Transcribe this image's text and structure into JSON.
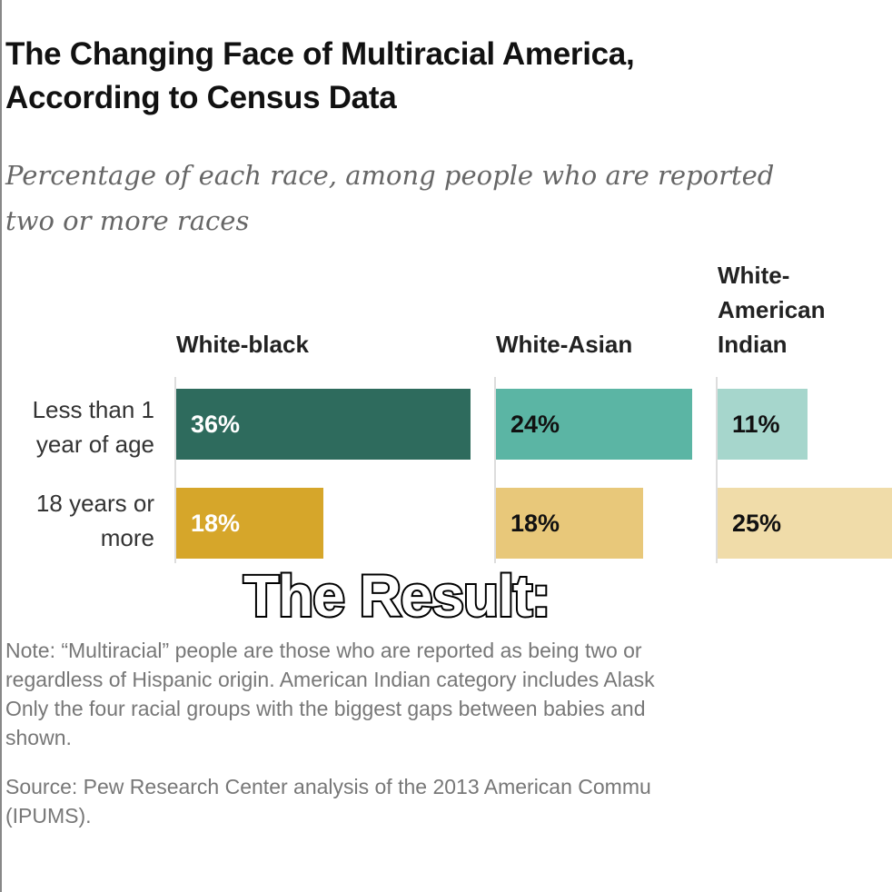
{
  "chart_data": {
    "type": "bar",
    "orientation": "horizontal",
    "title": "The Changing Face of Multiracial America, According to Census Data",
    "subtitle": "Percentage of each race, among people who are reported as two or more races",
    "title_lines": [
      "The Changing Face of Multiracial America,",
      "According to Census Data"
    ],
    "subtitle_lines": [
      "Percentage of each race, among people who are reported",
      "two or more races"
    ],
    "categories": [
      "Less than 1 year of age",
      "18 years or more"
    ],
    "category_lines": [
      [
        "Less than 1",
        "year of age"
      ],
      [
        "18 years or",
        "more"
      ]
    ],
    "groups": [
      {
        "name": "White-black",
        "name_lines": [
          "White-black"
        ],
        "values": [
          36,
          18
        ],
        "labels": [
          "36%",
          "18%"
        ],
        "colors": [
          "#2e6b5d",
          "#d6a62a"
        ],
        "label_colors": [
          "#ffffff",
          "#ffffff"
        ]
      },
      {
        "name": "White-Asian",
        "name_lines": [
          "White-Asian"
        ],
        "values": [
          24,
          18
        ],
        "labels": [
          "24%",
          "18%"
        ],
        "colors": [
          "#5bb5a4",
          "#e8c87a"
        ],
        "label_colors": [
          "#111111",
          "#111111"
        ]
      },
      {
        "name": "White-American Indian",
        "name_lines": [
          "White-",
          "American",
          "Indian"
        ],
        "values": [
          11,
          25
        ],
        "labels": [
          "11%",
          "25%"
        ],
        "colors": [
          "#a6d6cc",
          "#f0dca9"
        ],
        "label_colors": [
          "#111111",
          "#111111"
        ]
      }
    ],
    "unit": "%"
  },
  "notes": [
    "Note: “Multiracial” people are those who are reported as being two or",
    "regardless of Hispanic origin. American Indian category includes Alask",
    "Only the four racial groups with the biggest gaps between babies and",
    "shown."
  ],
  "source": [
    "Source: Pew Research Center analysis of the 2013 American Commu",
    "(IPUMS)."
  ],
  "overlay_caption": "The Result:"
}
